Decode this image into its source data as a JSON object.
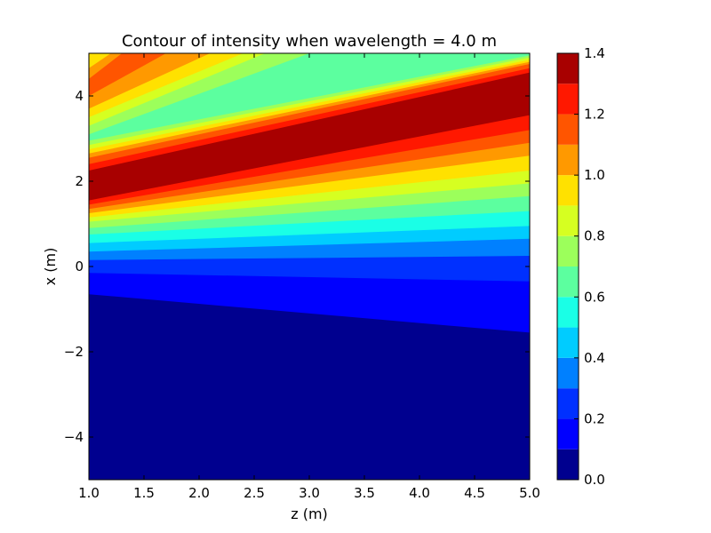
{
  "chart_data": {
    "type": "heatmap",
    "subtype": "filled-contour",
    "title": "Contour of intensity when wavelength = 4.0 m",
    "xlabel": "z (m)",
    "ylabel": "x (m)",
    "xlim": [
      1.0,
      5.0
    ],
    "ylim": [
      -5,
      5
    ],
    "x_ticks": [
      "1.0",
      "1.5",
      "2.0",
      "2.5",
      "3.0",
      "3.5",
      "4.0",
      "4.5",
      "5.0"
    ],
    "x_tick_values": [
      1.0,
      1.5,
      2.0,
      2.5,
      3.0,
      3.5,
      4.0,
      4.5,
      5.0
    ],
    "y_ticks": [
      "−4",
      "−2",
      "0",
      "2",
      "4"
    ],
    "y_tick_values": [
      -4,
      -2,
      0,
      2,
      4
    ],
    "grid": false,
    "colormap": "jet",
    "levels": [
      0.0,
      0.1,
      0.2,
      0.3,
      0.4,
      0.5,
      0.6,
      0.7,
      0.8,
      0.9,
      1.0,
      1.1,
      1.2,
      1.3,
      1.4
    ],
    "level_colors": [
      "#00008f",
      "#0000ff",
      "#0030ff",
      "#0080ff",
      "#00ccff",
      "#1affe6",
      "#5cff9f",
      "#9cff5b",
      "#d6ff21",
      "#ffe100",
      "#ff9900",
      "#ff5500",
      "#ff1800",
      "#a80000"
    ],
    "colorbar": {
      "placement": "right",
      "tick_values": [
        0.0,
        0.2,
        0.4,
        0.6,
        0.8,
        1.0,
        1.2,
        1.4
      ],
      "tick_labels": [
        "0.0",
        "0.2",
        "0.4",
        "0.6",
        "0.8",
        "1.0",
        "1.2",
        "1.4"
      ]
    },
    "boundaries": [
      {
        "level": 0.1,
        "z": [
          1.0,
          5.0
        ],
        "x": [
          -0.65,
          -1.55
        ]
      },
      {
        "level": 0.2,
        "z": [
          1.0,
          5.0
        ],
        "x": [
          -0.15,
          -0.35
        ]
      },
      {
        "level": 0.3,
        "z": [
          1.0,
          5.0
        ],
        "x": [
          0.15,
          0.25
        ]
      },
      {
        "level": 0.4,
        "z": [
          1.0,
          5.0
        ],
        "x": [
          0.35,
          0.65
        ]
      },
      {
        "level": 0.5,
        "z": [
          1.0,
          5.0
        ],
        "x": [
          0.55,
          0.95
        ]
      },
      {
        "level": 0.6,
        "z": [
          1.0,
          5.0
        ],
        "x": [
          0.75,
          1.3
        ]
      },
      {
        "level": 0.7,
        "z": [
          1.0,
          5.0
        ],
        "x": [
          0.9,
          1.65
        ]
      },
      {
        "level": 0.8,
        "z": [
          1.0,
          5.0
        ],
        "x": [
          1.05,
          1.95
        ]
      },
      {
        "level": 0.9,
        "z": [
          1.0,
          5.0
        ],
        "x": [
          1.15,
          2.25
        ]
      },
      {
        "level": 1.0,
        "z": [
          1.0,
          5.0
        ],
        "x": [
          1.25,
          2.6
        ]
      },
      {
        "level": 1.1,
        "z": [
          1.0,
          5.0
        ],
        "x": [
          1.35,
          2.9
        ]
      },
      {
        "level": 1.2,
        "z": [
          1.0,
          5.0
        ],
        "x": [
          1.45,
          3.2
        ]
      },
      {
        "level": 1.3,
        "z": [
          1.0,
          5.0
        ],
        "x": [
          1.55,
          3.55
        ]
      },
      {
        "level": 1.3,
        "z": [
          1.0,
          5.0
        ],
        "x": [
          2.05,
          4.4
        ]
      },
      {
        "level": 1.2,
        "z": [
          1.0,
          5.0
        ],
        "x": [
          2.25,
          4.55
        ]
      },
      {
        "level": 1.1,
        "z": [
          1.0,
          5.0
        ],
        "x": [
          2.4,
          4.65
        ]
      },
      {
        "level": 1.0,
        "z": [
          1.0,
          5.0
        ],
        "x": [
          2.55,
          4.75
        ]
      },
      {
        "level": 0.9,
        "z": [
          1.0,
          5.0
        ],
        "x": [
          2.65,
          4.8
        ]
      },
      {
        "level": 0.8,
        "z": [
          1.0,
          5.0
        ],
        "x": [
          2.75,
          4.85
        ]
      },
      {
        "level": 0.7,
        "z": [
          1.0,
          5.0
        ],
        "x": [
          2.85,
          4.9
        ]
      },
      {
        "level": 0.6,
        "z": [
          1.0,
          5.0
        ],
        "x": [
          2.95,
          4.95
        ]
      },
      {
        "level": 0.7,
        "z": [
          1.0,
          3.0
        ],
        "x": [
          3.1,
          5.0
        ]
      },
      {
        "level": 0.8,
        "z": [
          1.0,
          2.6
        ],
        "x": [
          3.3,
          5.0
        ]
      },
      {
        "level": 0.9,
        "z": [
          1.0,
          2.4
        ],
        "x": [
          3.5,
          5.0
        ]
      },
      {
        "level": 1.0,
        "z": [
          1.0,
          2.1
        ],
        "x": [
          3.7,
          5.0
        ]
      },
      {
        "level": 1.1,
        "z": [
          1.0,
          1.7
        ],
        "x": [
          4.0,
          5.0
        ]
      },
      {
        "level": 1.0,
        "z": [
          1.0,
          1.3
        ],
        "x": [
          4.4,
          5.0
        ]
      },
      {
        "level": 0.9,
        "z": [
          1.0,
          1.2
        ],
        "x": [
          4.65,
          5.0
        ]
      }
    ]
  }
}
